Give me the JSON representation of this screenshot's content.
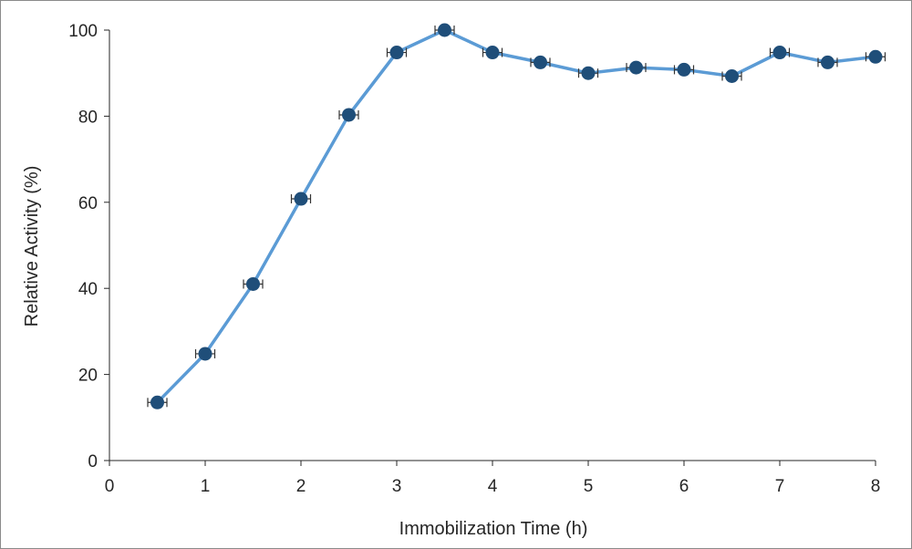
{
  "chart_data": {
    "type": "line",
    "title": "",
    "xlabel": "Immobilization Time (h)",
    "ylabel": "Relative Activity (%)",
    "xlim": [
      0,
      8
    ],
    "ylim": [
      0,
      100
    ],
    "x_ticks": [
      "0",
      "1",
      "2",
      "3",
      "4",
      "5",
      "6",
      "7",
      "8"
    ],
    "y_ticks": [
      "0",
      "20",
      "40",
      "60",
      "80",
      "100"
    ],
    "grid": false,
    "legend": "none",
    "error_bars": "horizontal",
    "x_error": 0.1,
    "series": [
      {
        "x": [
          0.5,
          1.0,
          1.5,
          2.0,
          2.5,
          3.0,
          3.5,
          4.0,
          4.5,
          5.0,
          5.5,
          6.0,
          6.5,
          7.0,
          7.5,
          8.0
        ],
        "y": [
          13.5,
          24.8,
          41.0,
          60.8,
          80.3,
          94.8,
          100,
          94.8,
          92.5,
          90.0,
          91.3,
          90.8,
          89.3,
          94.8,
          92.5,
          93.8
        ],
        "line_color": "#5b9bd5",
        "marker_color": "#1f4e79"
      }
    ]
  }
}
